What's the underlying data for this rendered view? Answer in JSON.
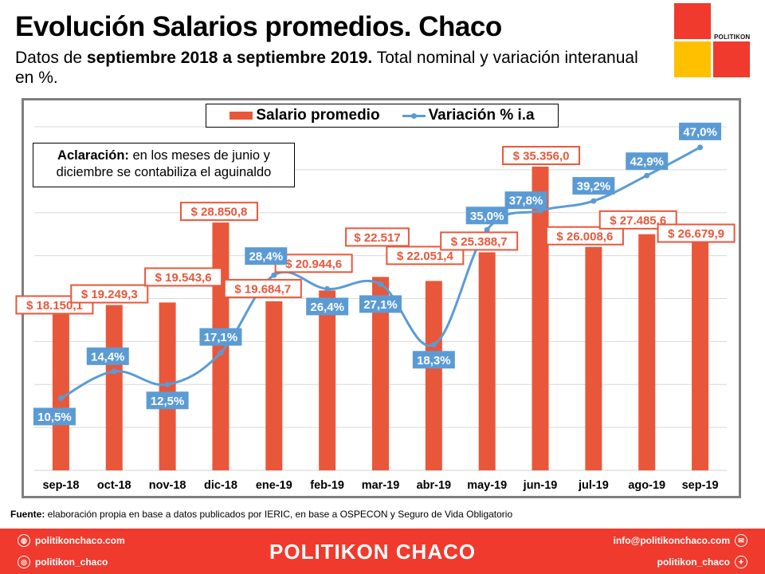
{
  "header": {
    "title": "Evolución Salarios promedios. Chaco",
    "subtitle_pre": "Datos de ",
    "subtitle_bold": "septiembre 2018 a septiembre 2019.",
    "subtitle_post": " Total nominal y variación interanual en %."
  },
  "logo": {
    "text": "POLITIKON"
  },
  "note": {
    "bold": "Aclaración:",
    "text": " en los meses de junio y diciembre se contabiliza el aguinaldo"
  },
  "source": {
    "bold": "Fuente:",
    "text": " elaboración propia en base a datos publicados por IERIC, en base a OSPECON y Seguro de Vida Obligatorio"
  },
  "footer": {
    "web": "politikonchaco.com",
    "instagram": "politikon_chaco",
    "brand": "POLITIKON CHACO",
    "email": "info@politikonchaco.com",
    "twitter": "politikon_chaco"
  },
  "colors": {
    "bar": "#e9573a",
    "line": "#5b9bd5",
    "brand_red": "#ef3a2d",
    "brand_yellow": "#ffc000"
  },
  "chart_data": {
    "type": "bar",
    "title": "Evolución Salarios promedios. Chaco",
    "categories": [
      "sep-18",
      "oct-18",
      "nov-18",
      "dic-18",
      "ene-19",
      "feb-19",
      "mar-19",
      "abr-19",
      "may-19",
      "jun-19",
      "jul-19",
      "ago-19",
      "sep-19"
    ],
    "series": [
      {
        "name": "Salario promedio",
        "kind": "bar",
        "axis": "primary",
        "values": [
          18150.1,
          19249.3,
          19543.6,
          28850.8,
          19684.7,
          20944.6,
          22517.0,
          22051.4,
          25388.7,
          35356.0,
          26008.6,
          27485.6,
          26679.9
        ],
        "labels": [
          "$ 18.150,1",
          "$ 19.249,3",
          "$ 19.543,6",
          "$ 28.850,8",
          "$ 19.684,7",
          "$ 20.944,6",
          "$ 22.517",
          "$ 22.051,4",
          "$ 25.388,7",
          "$ 35.356,0",
          "$ 26.008,6",
          "$ 27.485,6",
          "$ 26.679,9"
        ]
      },
      {
        "name": "Variación % i.a",
        "kind": "line",
        "axis": "secondary",
        "values": [
          10.5,
          14.4,
          12.5,
          17.1,
          28.4,
          26.4,
          27.1,
          18.3,
          35.0,
          37.8,
          39.2,
          42.9,
          47.0
        ],
        "labels": [
          "10,5%",
          "14,4%",
          "12,5%",
          "17,1%",
          "28,4%",
          "26,4%",
          "27,1%",
          "18,3%",
          "35,0%",
          "37,8%",
          "39,2%",
          "42,9%",
          "47,0%"
        ]
      }
    ],
    "legend": [
      "Salario promedio",
      "Variación % i.a"
    ],
    "legend_position": "top-center",
    "ylim": [
      0,
      40000
    ],
    "y2lim": [
      0,
      50
    ],
    "grid": true,
    "axes_visible": false
  }
}
